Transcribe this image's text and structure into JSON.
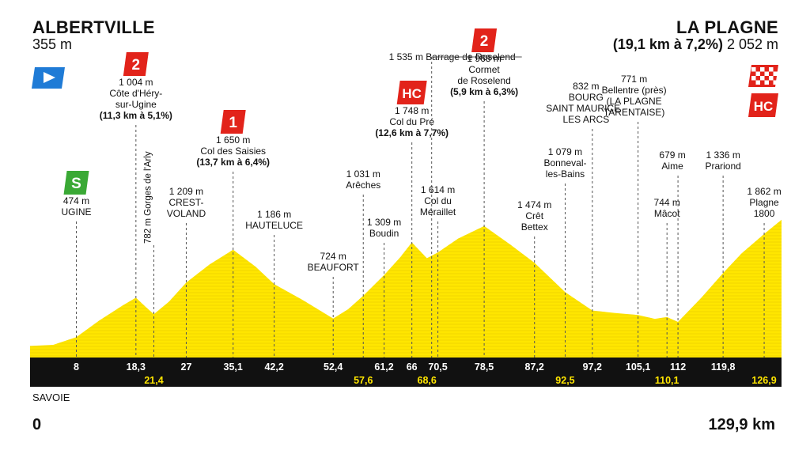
{
  "start": {
    "town": "ALBERTVILLE",
    "altitude": "355 m"
  },
  "finish": {
    "town": "LA PLAGNE",
    "climb_info": "(19,1 km à 7,2%)",
    "altitude": "2 052 m"
  },
  "footer": {
    "region": "SAVOIE",
    "start_km": "0",
    "total_km": "129,9 km"
  },
  "colors": {
    "profile": "#ffe600",
    "profile_line": "#e6c400",
    "band": "#111111",
    "km_upper": "#ffffff",
    "km_lower": "#ffe600",
    "cat_red": "#e2231a",
    "sprint_green": "#3aa935",
    "start_blue": "#1f7bd6"
  },
  "icons": {
    "start": "start-flag-icon",
    "finish": "finish-checkered-flag-icon",
    "sprint": "intermediate-sprint-icon"
  },
  "profile_points": [
    {
      "km": 0,
      "alt": 355
    },
    {
      "km": 4,
      "alt": 370
    },
    {
      "km": 8,
      "alt": 474
    },
    {
      "km": 12,
      "alt": 700
    },
    {
      "km": 16,
      "alt": 900
    },
    {
      "km": 18.3,
      "alt": 1004
    },
    {
      "km": 20,
      "alt": 880
    },
    {
      "km": 21.4,
      "alt": 782
    },
    {
      "km": 24,
      "alt": 950
    },
    {
      "km": 27,
      "alt": 1209
    },
    {
      "km": 31,
      "alt": 1450
    },
    {
      "km": 35.1,
      "alt": 1650
    },
    {
      "km": 39,
      "alt": 1420
    },
    {
      "km": 42.2,
      "alt": 1186
    },
    {
      "km": 47,
      "alt": 980
    },
    {
      "km": 52.4,
      "alt": 724
    },
    {
      "km": 55,
      "alt": 850
    },
    {
      "km": 57.6,
      "alt": 1031
    },
    {
      "km": 61.2,
      "alt": 1309
    },
    {
      "km": 64,
      "alt": 1550
    },
    {
      "km": 66,
      "alt": 1748
    },
    {
      "km": 68.6,
      "alt": 1535
    },
    {
      "km": 70.5,
      "alt": 1614
    },
    {
      "km": 74,
      "alt": 1800
    },
    {
      "km": 78.5,
      "alt": 1968
    },
    {
      "km": 83,
      "alt": 1720
    },
    {
      "km": 87.2,
      "alt": 1474
    },
    {
      "km": 92.5,
      "alt": 1079
    },
    {
      "km": 97.2,
      "alt": 832
    },
    {
      "km": 101,
      "alt": 800
    },
    {
      "km": 105.1,
      "alt": 771
    },
    {
      "km": 108,
      "alt": 720
    },
    {
      "km": 110.1,
      "alt": 744
    },
    {
      "km": 112,
      "alt": 679
    },
    {
      "km": 116,
      "alt": 1000
    },
    {
      "km": 119.8,
      "alt": 1336
    },
    {
      "km": 123,
      "alt": 1600
    },
    {
      "km": 126.9,
      "alt": 1862
    },
    {
      "km": 129.9,
      "alt": 2052
    }
  ],
  "km_markers": [
    {
      "km": 8,
      "label": "8",
      "row": "upper"
    },
    {
      "km": 18.3,
      "label": "18,3",
      "row": "upper"
    },
    {
      "km": 21.4,
      "label": "21,4",
      "row": "lower"
    },
    {
      "km": 27,
      "label": "27",
      "row": "upper"
    },
    {
      "km": 35.1,
      "label": "35,1",
      "row": "upper"
    },
    {
      "km": 42.2,
      "label": "42,2",
      "row": "upper"
    },
    {
      "km": 52.4,
      "label": "52,4",
      "row": "upper"
    },
    {
      "km": 57.6,
      "label": "57,6",
      "row": "lower"
    },
    {
      "km": 61.2,
      "label": "61,2",
      "row": "upper"
    },
    {
      "km": 66,
      "label": "66",
      "row": "upper"
    },
    {
      "km": 68.6,
      "label": "68,6",
      "row": "lower"
    },
    {
      "km": 70.5,
      "label": "70,5",
      "row": "upper"
    },
    {
      "km": 78.5,
      "label": "78,5",
      "row": "upper"
    },
    {
      "km": 87.2,
      "label": "87,2",
      "row": "upper"
    },
    {
      "km": 92.5,
      "label": "92,5",
      "row": "lower"
    },
    {
      "km": 97.2,
      "label": "97,2",
      "row": "upper"
    },
    {
      "km": 105.1,
      "label": "105,1",
      "row": "upper"
    },
    {
      "km": 110.1,
      "label": "110,1",
      "row": "lower"
    },
    {
      "km": 112,
      "label": "112",
      "row": "upper"
    },
    {
      "km": 119.8,
      "label": "119,8",
      "row": "upper"
    },
    {
      "km": 126.9,
      "label": "126,9",
      "row": "lower"
    }
  ],
  "waypoints": [
    {
      "km": 8,
      "lines": [
        "474 m",
        "UGINE"
      ],
      "bold": [],
      "badge": "S"
    },
    {
      "km": 18.3,
      "lines": [
        "1 004 m",
        "Côte d'Héry-",
        "sur-Ugine",
        "(11,3 km à 5,1%)"
      ],
      "bold": [
        "(11,3 km à 5,1%)"
      ],
      "badge": "2"
    },
    {
      "km": 21.4,
      "lines": [
        "782 m Gorges de l'Arly"
      ],
      "bold": [],
      "badge": "",
      "vertical": true
    },
    {
      "km": 27,
      "lines": [
        "1 209 m",
        "CREST-",
        "VOLAND"
      ],
      "bold": [],
      "badge": ""
    },
    {
      "km": 35.1,
      "lines": [
        "1 650 m",
        "Col des Saisies",
        "(13,7 km à 6,4%)"
      ],
      "bold": [
        "(13,7 km à 6,4%)"
      ],
      "badge": "1"
    },
    {
      "km": 42.2,
      "lines": [
        "1 186 m",
        "HAUTELUCE"
      ],
      "bold": [],
      "badge": ""
    },
    {
      "km": 52.4,
      "lines": [
        "724 m",
        "BEAUFORT"
      ],
      "bold": [],
      "badge": ""
    },
    {
      "km": 57.6,
      "lines": [
        "1 031 m",
        "Arêches"
      ],
      "bold": [],
      "badge": ""
    },
    {
      "km": 61.2,
      "lines": [
        "1 309 m",
        "Boudin"
      ],
      "bold": [],
      "badge": ""
    },
    {
      "km": 66,
      "lines": [
        "1 748 m",
        "Col du Pré",
        "(12,6 km à 7,7%)"
      ],
      "bold": [
        "(12,6 km à 7,7%)"
      ],
      "badge": "HC"
    },
    {
      "km": 68.6,
      "lines": [
        "1 535 m Barrage de Roselend"
      ],
      "bold": [],
      "badge": ""
    },
    {
      "km": 70.5,
      "lines": [
        "1 614 m",
        "Col du",
        "Méraillet"
      ],
      "bold": [],
      "badge": ""
    },
    {
      "km": 78.5,
      "lines": [
        "1 968 m",
        "Cormet",
        "de Roselend",
        "(5,9 km à 6,3%)"
      ],
      "bold": [
        "(5,9 km à 6,3%)"
      ],
      "badge": "2"
    },
    {
      "km": 87.2,
      "lines": [
        "1 474 m",
        "Crêt",
        "Bettex"
      ],
      "bold": [],
      "badge": ""
    },
    {
      "km": 92.5,
      "lines": [
        "1 079 m",
        "Bonneval-",
        "les-Bains"
      ],
      "bold": [],
      "badge": ""
    },
    {
      "km": 97.2,
      "lines": [
        "832 m",
        "BOURG",
        "SAINT MAURICE -",
        "LES ARCS"
      ],
      "bold": [],
      "badge": ""
    },
    {
      "km": 105.1,
      "lines": [
        "771 m",
        "Bellentre (près)",
        "(LA PLAGNE",
        "TARENTAISE)"
      ],
      "bold": [],
      "badge": ""
    },
    {
      "km": 110.1,
      "lines": [
        "744 m",
        "Mâcot"
      ],
      "bold": [],
      "badge": ""
    },
    {
      "km": 112,
      "lines": [
        "679 m",
        "Aime"
      ],
      "bold": [],
      "badge": ""
    },
    {
      "km": 119.8,
      "lines": [
        "1 336 m",
        "Prariond"
      ],
      "bold": [],
      "badge": ""
    },
    {
      "km": 126.9,
      "lines": [
        "1 862 m",
        "Plagne",
        "1800"
      ],
      "bold": [],
      "badge": ""
    }
  ],
  "finish_badges": [
    "HC"
  ]
}
